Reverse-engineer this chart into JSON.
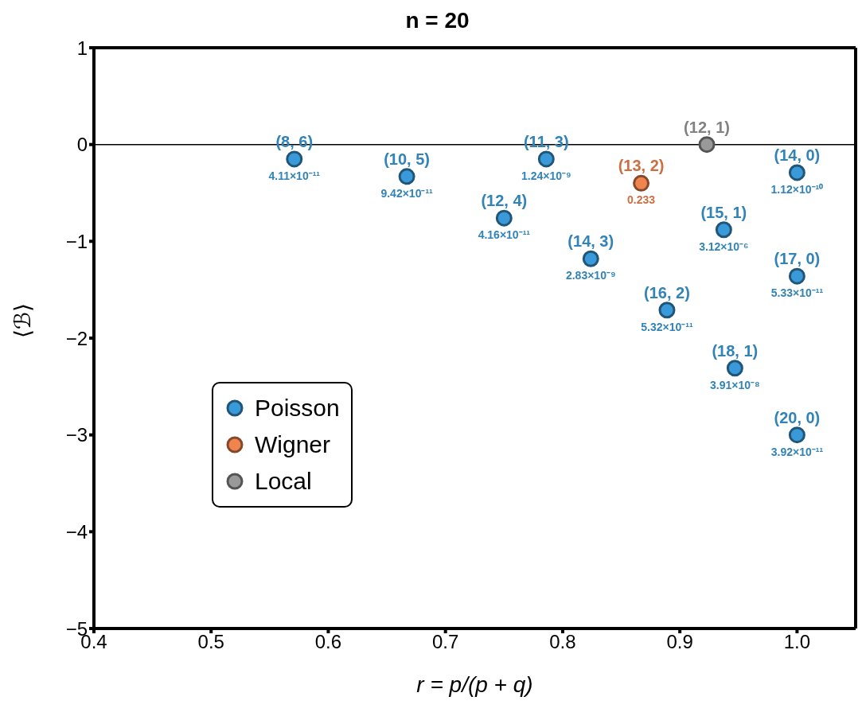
{
  "chart_data": {
    "type": "scatter",
    "title": "n = 20",
    "xlabel": "r = p/(p + q)",
    "ylabel": "⟨ℬ⟩",
    "xlim": [
      0.4,
      1.05
    ],
    "xticks": [
      0.4,
      0.5,
      0.6,
      0.7,
      0.8,
      0.9,
      {
        "value": 1,
        "label": "1.0"
      }
    ],
    "ylim": [
      -5,
      1
    ],
    "yticks": [
      -5,
      -4,
      -3,
      -2,
      -1,
      0,
      1
    ],
    "grid": false,
    "legend": "bottom left",
    "marker": "circle",
    "ref_lines": [
      {
        "axis": "y",
        "value": 0,
        "color": "#000000"
      }
    ],
    "series": [
      {
        "name": "Poisson",
        "color": "#3a9ad9",
        "x": [
          0.571,
          0.667,
          0.75,
          0.786,
          0.824,
          0.889,
          0.9375,
          0.947,
          1.0,
          1.0,
          1.0
        ],
        "values": [
          -0.15,
          -0.33,
          -0.76,
          -0.15,
          -1.18,
          -1.71,
          -0.88,
          -2.31,
          -0.29,
          -1.36,
          -3.0
        ]
      },
      {
        "name": "Wigner",
        "color": "#f0844f",
        "x": [
          0.867
        ],
        "values": [
          -0.4
        ]
      },
      {
        "name": "Local",
        "color": "#999999",
        "x": [
          0.923
        ],
        "values": [
          0.0
        ]
      }
    ],
    "annotations": [
      {
        "text": "(8, 6)",
        "x": 0.571,
        "y": -0.15
      },
      {
        "text": "4.11×10⁻¹¹",
        "x": 0.571,
        "y": -0.15
      },
      {
        "text": "(10, 5)",
        "x": 0.667,
        "y": -0.33
      },
      {
        "text": "9.42×10⁻¹¹",
        "x": 0.667,
        "y": -0.33
      },
      {
        "text": "(12, 4)",
        "x": 0.75,
        "y": -0.76
      },
      {
        "text": "4.16×10⁻¹¹",
        "x": 0.75,
        "y": -0.76
      },
      {
        "text": "(11, 3)",
        "x": 0.786,
        "y": -0.15
      },
      {
        "text": "1.24×10⁻⁹",
        "x": 0.786,
        "y": -0.15
      },
      {
        "text": "(14, 3)",
        "x": 0.824,
        "y": -1.18
      },
      {
        "text": "2.83×10⁻⁹",
        "x": 0.824,
        "y": -1.18
      },
      {
        "text": "(16, 2)",
        "x": 0.889,
        "y": -1.71
      },
      {
        "text": "5.32×10⁻¹¹",
        "x": 0.889,
        "y": -1.71
      },
      {
        "text": "(15, 1)",
        "x": 0.9375,
        "y": -0.88
      },
      {
        "text": "3.12×10⁻⁶",
        "x": 0.9375,
        "y": -0.88
      },
      {
        "text": "(18, 1)",
        "x": 0.947,
        "y": -2.31
      },
      {
        "text": "3.91×10⁻⁸",
        "x": 0.947,
        "y": -2.31
      },
      {
        "text": "(14, 0)",
        "x": 1.0,
        "y": -0.29
      },
      {
        "text": "1.12×10⁻¹⁰",
        "x": 1.0,
        "y": -0.29
      },
      {
        "text": "(17, 0)",
        "x": 1.0,
        "y": -1.36
      },
      {
        "text": "5.33×10⁻¹¹",
        "x": 1.0,
        "y": -1.36
      },
      {
        "text": "(20, 0)",
        "x": 1.0,
        "y": -3.0
      },
      {
        "text": "3.92×10⁻¹¹",
        "x": 1.0,
        "y": -3.0
      },
      {
        "text": "(13, 2)",
        "x": 0.867,
        "y": -0.4
      },
      {
        "text": "0.233",
        "x": 0.867,
        "y": -0.4
      },
      {
        "text": "(12, 1)",
        "x": 0.923,
        "y": 0.0
      }
    ]
  }
}
